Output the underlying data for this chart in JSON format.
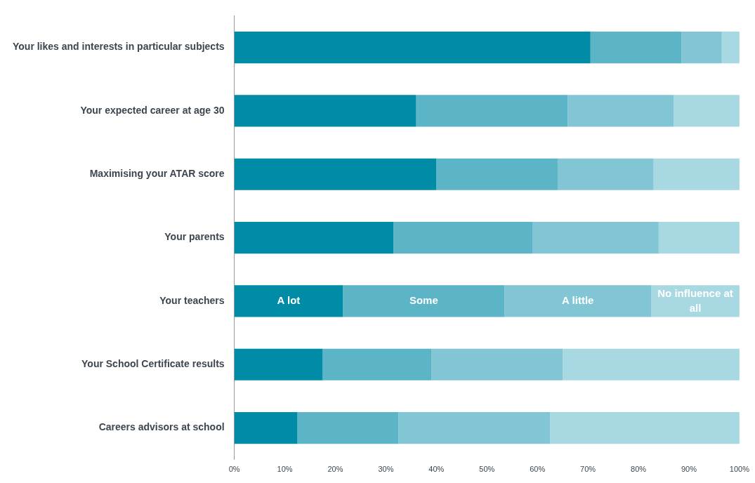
{
  "chart_data": {
    "type": "bar",
    "orientation": "horizontal",
    "stacked": true,
    "categories": [
      "Your likes and interests in particular subjects",
      "Your expected career at age 30",
      "Maximising your ATAR score",
      "Your parents",
      "Your teachers",
      "Your School Certificate results",
      "Careers advisors at school"
    ],
    "series": [
      {
        "name": "A lot",
        "color": "#008ba6",
        "values": [
          70.5,
          36,
          40,
          31.5,
          21.5,
          17.5,
          12.5
        ]
      },
      {
        "name": "Some",
        "color": "#5bb5c7",
        "values": [
          18,
          30,
          24,
          27.5,
          32,
          21.5,
          20
        ]
      },
      {
        "name": "A little",
        "color": "#82c5d4",
        "values": [
          8,
          21,
          19,
          25,
          29,
          26,
          30
        ]
      },
      {
        "name": "No influence at all",
        "color": "#a8d8e2",
        "values": [
          3.5,
          13,
          17,
          16,
          17.5,
          35,
          37.5
        ]
      }
    ],
    "xlim": [
      0,
      100
    ],
    "xticks": [
      {
        "value": 0,
        "label": "0%"
      },
      {
        "value": 10,
        "label": "10%"
      },
      {
        "value": 20,
        "label": "20%"
      },
      {
        "value": 30,
        "label": "30%"
      },
      {
        "value": 40,
        "label": "40%"
      },
      {
        "value": 50,
        "label": "50%"
      },
      {
        "value": 60,
        "label": "60%"
      },
      {
        "value": 70,
        "label": "70%"
      },
      {
        "value": 80,
        "label": "80%"
      },
      {
        "value": 90,
        "label": "90%"
      },
      {
        "value": 100,
        "label": "100%"
      }
    ]
  }
}
